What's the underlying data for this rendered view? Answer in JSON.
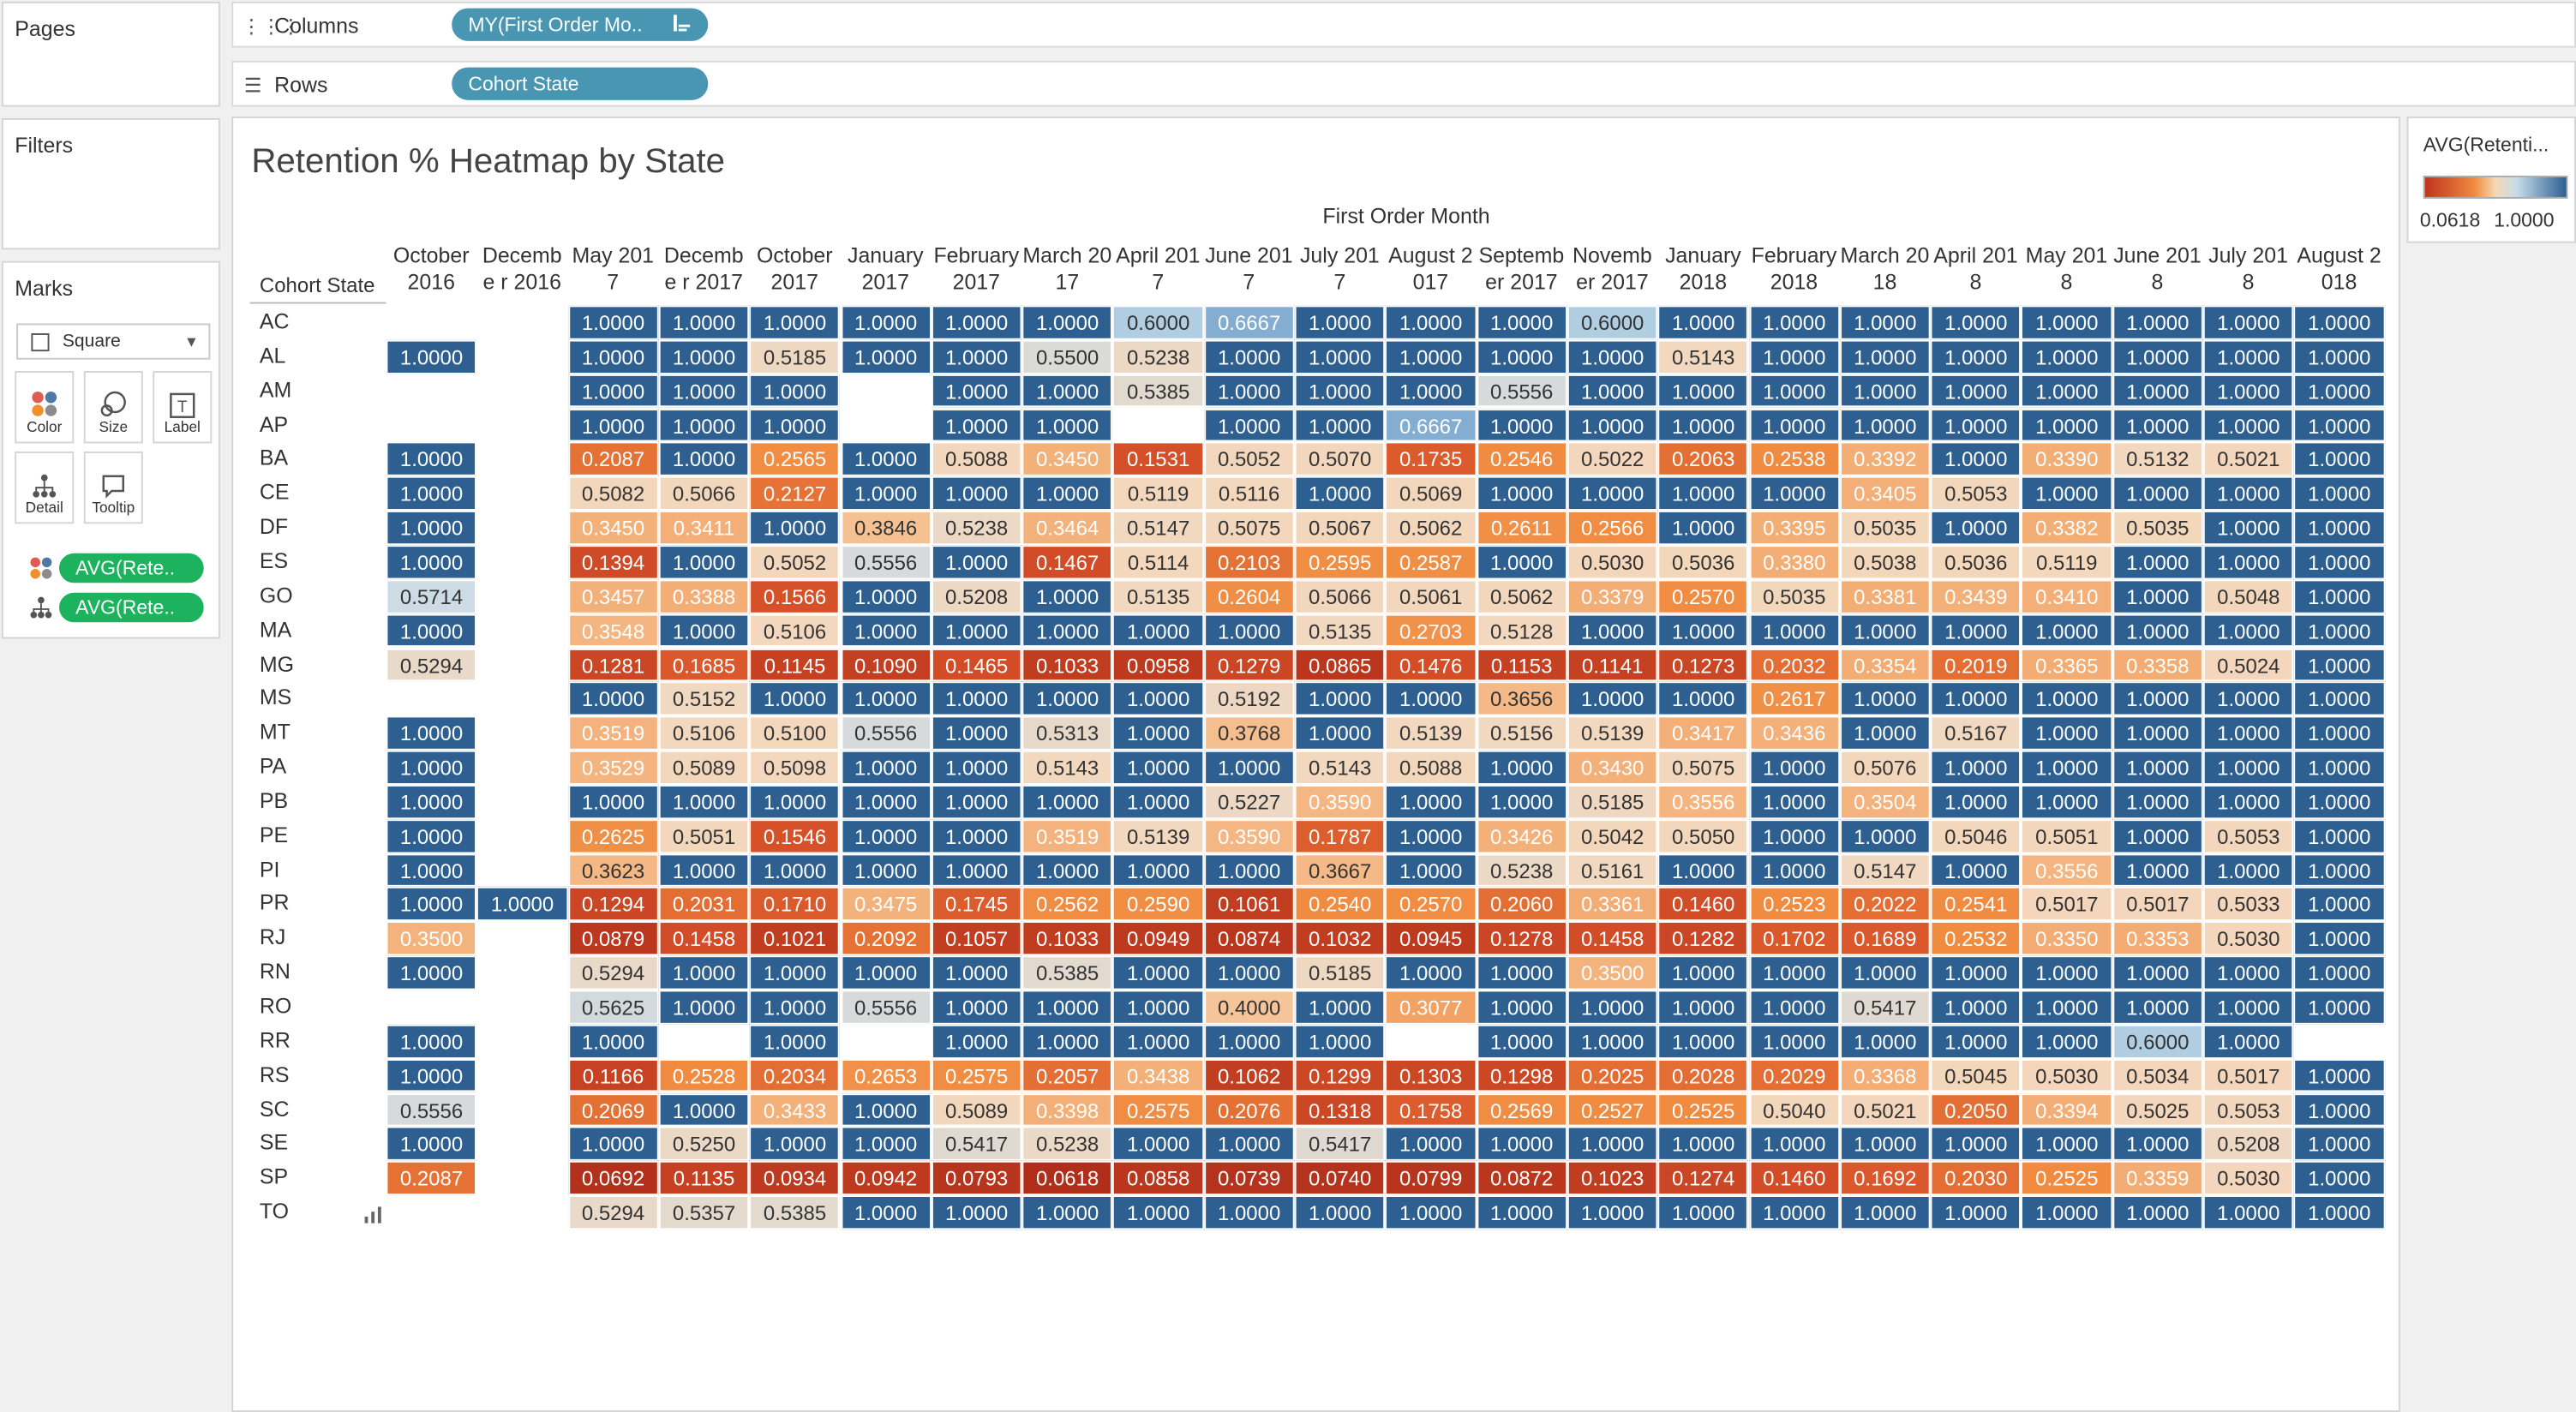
{
  "panels": {
    "pages_label": "Pages",
    "filters_label": "Filters",
    "marks_label": "Marks"
  },
  "shelves": {
    "columns_label": "Columns",
    "columns_pill": "MY(First Order Mo..",
    "rows_label": "Rows",
    "rows_pill": "Cohort State"
  },
  "marks": {
    "type": "Square",
    "buttons": [
      "Color",
      "Size",
      "Label",
      "Detail",
      "Tooltip"
    ],
    "color_pill": "AVG(Rete..",
    "detail_pill": "AVG(Rete.."
  },
  "legend": {
    "title": "AVG(Retenti...",
    "min": "0.0618",
    "max": "1.0000"
  },
  "colors": {
    "blue_dark": "#2d5f91",
    "orange": "#f08a3e",
    "red": "#c0341d",
    "pill_blue": "#4996b2",
    "pill_green": "#1db35e"
  },
  "view": {
    "title": "Retention % Heatmap by State",
    "column_axis_title": "First Order Month",
    "row_header_title": "Cohort State"
  },
  "chart_data": {
    "type": "heatmap",
    "title": "Retention % Heatmap by State",
    "xlabel": "First Order Month",
    "ylabel": "Cohort State",
    "x": [
      "October 2016",
      "Decembe r 2016",
      "May 2017",
      "Decembe r 2017",
      "October 2017",
      "January 2017",
      "February 2017",
      "March 2017",
      "April 2017",
      "June 2017",
      "July 2017",
      "August 2017",
      "Septemb er 2017",
      "Novemb er 2017",
      "January 2018",
      "February 2018",
      "March 2018",
      "April 2018",
      "May 2018",
      "June 2018",
      "July 2018",
      "August 2018"
    ],
    "y": [
      "AC",
      "AL",
      "AM",
      "AP",
      "BA",
      "CE",
      "DF",
      "ES",
      "GO",
      "MA",
      "MG",
      "MS",
      "MT",
      "PA",
      "PB",
      "PE",
      "PI",
      "PR",
      "RJ",
      "RN",
      "RO",
      "RR",
      "RS",
      "SC",
      "SE",
      "SP",
      "TO"
    ],
    "color_range": [
      0.0618,
      1.0
    ],
    "values": [
      [
        null,
        null,
        "1.0000",
        "1.0000",
        "1.0000",
        "1.0000",
        "1.0000",
        "1.0000",
        "0.6000",
        "0.6667",
        "1.0000",
        "1.0000",
        "1.0000",
        "0.6000",
        "1.0000",
        "1.0000",
        "1.0000",
        "1.0000",
        "1.0000",
        "1.0000",
        "1.0000",
        "1.0000"
      ],
      [
        "1.0000",
        null,
        "1.0000",
        "1.0000",
        "0.5185",
        "1.0000",
        "1.0000",
        "0.5500",
        "0.5238",
        "1.0000",
        "1.0000",
        "1.0000",
        "1.0000",
        "1.0000",
        "0.5143",
        "1.0000",
        "1.0000",
        "1.0000",
        "1.0000",
        "1.0000",
        "1.0000",
        "1.0000"
      ],
      [
        null,
        null,
        "1.0000",
        "1.0000",
        "1.0000",
        null,
        "1.0000",
        "1.0000",
        "0.5385",
        "1.0000",
        "1.0000",
        "1.0000",
        "0.5556",
        "1.0000",
        "1.0000",
        "1.0000",
        "1.0000",
        "1.0000",
        "1.0000",
        "1.0000",
        "1.0000",
        "1.0000"
      ],
      [
        null,
        null,
        "1.0000",
        "1.0000",
        "1.0000",
        null,
        "1.0000",
        "1.0000",
        null,
        "1.0000",
        "1.0000",
        "0.6667",
        "1.0000",
        "1.0000",
        "1.0000",
        "1.0000",
        "1.0000",
        "1.0000",
        "1.0000",
        "1.0000",
        "1.0000",
        "1.0000"
      ],
      [
        "1.0000",
        null,
        "0.2087",
        "1.0000",
        "0.2565",
        "1.0000",
        "0.5088",
        "0.3450",
        "0.1531",
        "0.5052",
        "0.5070",
        "0.1735",
        "0.2546",
        "0.5022",
        "0.2063",
        "0.2538",
        "0.3392",
        "1.0000",
        "0.3390",
        "0.5132",
        "0.5021",
        "1.0000"
      ],
      [
        "1.0000",
        null,
        "0.5082",
        "0.5066",
        "0.2127",
        "1.0000",
        "1.0000",
        "1.0000",
        "0.5119",
        "0.5116",
        "1.0000",
        "0.5069",
        "1.0000",
        "1.0000",
        "1.0000",
        "1.0000",
        "0.3405",
        "0.5053",
        "1.0000",
        "1.0000",
        "1.0000",
        "1.0000"
      ],
      [
        "1.0000",
        null,
        "0.3450",
        "0.3411",
        "1.0000",
        "0.3846",
        "0.5238",
        "0.3464",
        "0.5147",
        "0.5075",
        "0.5067",
        "0.5062",
        "0.2611",
        "0.2566",
        "1.0000",
        "0.3395",
        "0.5035",
        "1.0000",
        "0.3382",
        "0.5035",
        "1.0000",
        "1.0000"
      ],
      [
        "1.0000",
        null,
        "0.1394",
        "1.0000",
        "0.5052",
        "0.5556",
        "1.0000",
        "0.1467",
        "0.5114",
        "0.2103",
        "0.2595",
        "0.2587",
        "1.0000",
        "0.5030",
        "0.5036",
        "0.3380",
        "0.5038",
        "0.5036",
        "0.5119",
        "1.0000",
        "1.0000",
        "1.0000"
      ],
      [
        "0.5714",
        null,
        "0.3457",
        "0.3388",
        "0.1566",
        "1.0000",
        "0.5208",
        "1.0000",
        "0.5135",
        "0.2604",
        "0.5066",
        "0.5061",
        "0.5062",
        "0.3379",
        "0.2570",
        "0.5035",
        "0.3381",
        "0.3439",
        "0.3410",
        "1.0000",
        "0.5048",
        "1.0000"
      ],
      [
        "1.0000",
        null,
        "0.3548",
        "1.0000",
        "0.5106",
        "1.0000",
        "1.0000",
        "1.0000",
        "1.0000",
        "1.0000",
        "0.5135",
        "0.2703",
        "0.5128",
        "1.0000",
        "1.0000",
        "1.0000",
        "1.0000",
        "1.0000",
        "1.0000",
        "1.0000",
        "1.0000",
        "1.0000"
      ],
      [
        "0.5294",
        null,
        "0.1281",
        "0.1685",
        "0.1145",
        "0.1090",
        "0.1465",
        "0.1033",
        "0.0958",
        "0.1279",
        "0.0865",
        "0.1476",
        "0.1153",
        "0.1141",
        "0.1273",
        "0.2032",
        "0.3354",
        "0.2019",
        "0.3365",
        "0.3358",
        "0.5024",
        "1.0000"
      ],
      [
        null,
        null,
        "1.0000",
        "0.5152",
        "1.0000",
        "1.0000",
        "1.0000",
        "1.0000",
        "1.0000",
        "0.5192",
        "1.0000",
        "1.0000",
        "0.3656",
        "1.0000",
        "1.0000",
        "0.2617",
        "1.0000",
        "1.0000",
        "1.0000",
        "1.0000",
        "1.0000",
        "1.0000"
      ],
      [
        "1.0000",
        null,
        "0.3519",
        "0.5106",
        "0.5100",
        "0.5556",
        "1.0000",
        "0.5313",
        "1.0000",
        "0.3768",
        "1.0000",
        "0.5139",
        "0.5156",
        "0.5139",
        "0.3417",
        "0.3436",
        "1.0000",
        "0.5167",
        "1.0000",
        "1.0000",
        "1.0000",
        "1.0000"
      ],
      [
        "1.0000",
        null,
        "0.3529",
        "0.5089",
        "0.5098",
        "1.0000",
        "1.0000",
        "0.5143",
        "1.0000",
        "1.0000",
        "0.5143",
        "0.5088",
        "1.0000",
        "0.3430",
        "0.5075",
        "1.0000",
        "0.5076",
        "1.0000",
        "1.0000",
        "1.0000",
        "1.0000",
        "1.0000"
      ],
      [
        "1.0000",
        null,
        "1.0000",
        "1.0000",
        "1.0000",
        "1.0000",
        "1.0000",
        "1.0000",
        "1.0000",
        "0.5227",
        "0.3590",
        "1.0000",
        "1.0000",
        "0.5185",
        "0.3556",
        "1.0000",
        "0.3504",
        "1.0000",
        "1.0000",
        "1.0000",
        "1.0000",
        "1.0000"
      ],
      [
        "1.0000",
        null,
        "0.2625",
        "0.5051",
        "0.1546",
        "1.0000",
        "1.0000",
        "0.3519",
        "0.5139",
        "0.3590",
        "0.1787",
        "1.0000",
        "0.3426",
        "0.5042",
        "0.5050",
        "1.0000",
        "1.0000",
        "0.5046",
        "0.5051",
        "1.0000",
        "0.5053",
        "1.0000"
      ],
      [
        "1.0000",
        null,
        "0.3623",
        "1.0000",
        "1.0000",
        "1.0000",
        "1.0000",
        "1.0000",
        "1.0000",
        "1.0000",
        "0.3667",
        "1.0000",
        "0.5238",
        "0.5161",
        "1.0000",
        "1.0000",
        "0.5147",
        "1.0000",
        "0.3556",
        "1.0000",
        "1.0000",
        "1.0000"
      ],
      [
        "1.0000",
        "1.0000",
        "0.1294",
        "0.2031",
        "0.1710",
        "0.3475",
        "0.1745",
        "0.2562",
        "0.2590",
        "0.1061",
        "0.2540",
        "0.2570",
        "0.2060",
        "0.3361",
        "0.1460",
        "0.2523",
        "0.2022",
        "0.2541",
        "0.5017",
        "0.5017",
        "0.5033",
        "1.0000"
      ],
      [
        "0.3500",
        null,
        "0.0879",
        "0.1458",
        "0.1021",
        "0.2092",
        "0.1057",
        "0.1033",
        "0.0949",
        "0.0874",
        "0.1032",
        "0.0945",
        "0.1278",
        "0.1458",
        "0.1282",
        "0.1702",
        "0.1689",
        "0.2532",
        "0.3350",
        "0.3353",
        "0.5030",
        "1.0000"
      ],
      [
        "1.0000",
        null,
        "0.5294",
        "1.0000",
        "1.0000",
        "1.0000",
        "1.0000",
        "0.5385",
        "1.0000",
        "1.0000",
        "0.5185",
        "1.0000",
        "1.0000",
        "0.3500",
        "1.0000",
        "1.0000",
        "1.0000",
        "1.0000",
        "1.0000",
        "1.0000",
        "1.0000",
        "1.0000"
      ],
      [
        null,
        null,
        "0.5625",
        "1.0000",
        "1.0000",
        "0.5556",
        "1.0000",
        "1.0000",
        "1.0000",
        "0.4000",
        "1.0000",
        "0.3077",
        "1.0000",
        "1.0000",
        "1.0000",
        "1.0000",
        "0.5417",
        "1.0000",
        "1.0000",
        "1.0000",
        "1.0000",
        "1.0000"
      ],
      [
        "1.0000",
        null,
        "1.0000",
        null,
        "1.0000",
        null,
        "1.0000",
        "1.0000",
        "1.0000",
        "1.0000",
        "1.0000",
        null,
        "1.0000",
        "1.0000",
        "1.0000",
        "1.0000",
        "1.0000",
        "1.0000",
        "1.0000",
        "0.6000",
        "1.0000",
        null
      ],
      [
        "1.0000",
        null,
        "0.1166",
        "0.2528",
        "0.2034",
        "0.2653",
        "0.2575",
        "0.2057",
        "0.3438",
        "0.1062",
        "0.1299",
        "0.1303",
        "0.1298",
        "0.2025",
        "0.2028",
        "0.2029",
        "0.3368",
        "0.5045",
        "0.5030",
        "0.5034",
        "0.5017",
        "1.0000"
      ],
      [
        "0.5556",
        null,
        "0.2069",
        "1.0000",
        "0.3433",
        "1.0000",
        "0.5089",
        "0.3398",
        "0.2575",
        "0.2076",
        "0.1318",
        "0.1758",
        "0.2569",
        "0.2527",
        "0.2525",
        "0.5040",
        "0.5021",
        "0.2050",
        "0.3394",
        "0.5025",
        "0.5053",
        "1.0000"
      ],
      [
        "1.0000",
        null,
        "1.0000",
        "0.5250",
        "1.0000",
        "1.0000",
        "0.5417",
        "0.5238",
        "1.0000",
        "1.0000",
        "0.5417",
        "1.0000",
        "1.0000",
        "1.0000",
        "1.0000",
        "1.0000",
        "1.0000",
        "1.0000",
        "1.0000",
        "1.0000",
        "0.5208",
        "1.0000"
      ],
      [
        "0.2087",
        null,
        "0.0692",
        "0.1135",
        "0.0934",
        "0.0942",
        "0.0793",
        "0.0618",
        "0.0858",
        "0.0739",
        "0.0740",
        "0.0799",
        "0.0872",
        "0.1023",
        "0.1274",
        "0.1460",
        "0.1692",
        "0.2030",
        "0.2525",
        "0.3359",
        "0.5030",
        "1.0000"
      ],
      [
        null,
        null,
        "0.5294",
        "0.5357",
        "0.5385",
        "1.0000",
        "1.0000",
        "1.0000",
        "1.0000",
        "1.0000",
        "1.0000",
        "1.0000",
        "1.0000",
        "1.0000",
        "1.0000",
        "1.0000",
        "1.0000",
        "1.0000",
        "1.0000",
        "1.0000",
        "1.0000",
        "1.0000"
      ]
    ]
  }
}
